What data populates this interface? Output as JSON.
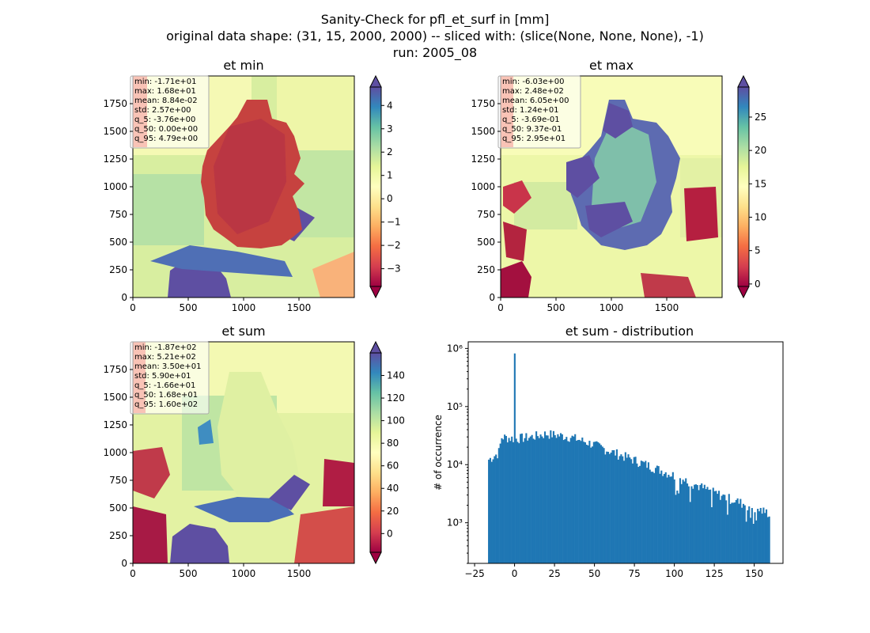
{
  "figure": {
    "title_lines": [
      "Sanity-Check for pfl_et_surf in [mm]",
      "original data shape: (31, 15, 2000, 2000) -- sliced with: (slice(None, None, None), -1)",
      "run: 2005_08"
    ]
  },
  "chart_data": [
    {
      "type": "heatmap",
      "title": "et min",
      "colormap": "Spectral",
      "xlim": [
        0,
        2000
      ],
      "ylim": [
        0,
        2000
      ],
      "x_ticks": [
        "0",
        "500",
        "1000",
        "1500"
      ],
      "y_ticks": [
        "0",
        "250",
        "500",
        "750",
        "1000",
        "1250",
        "1500",
        "1750"
      ],
      "colorbar": {
        "range": [
          -3.76,
          4.79
        ],
        "ticks": [
          "−3",
          "−2",
          "−1",
          "0",
          "1",
          "2",
          "3",
          "4"
        ],
        "ext": "both"
      },
      "stats": [
        "min: -1.71e+01",
        "max: 1.68e+01",
        "mean: 8.84e-02",
        "std: 2.57e+00",
        "q_5: -3.76e+00",
        "q_50: 0.00e+00",
        "q_95: 4.79e+00"
      ]
    },
    {
      "type": "heatmap",
      "title": "et max",
      "colormap": "Spectral",
      "xlim": [
        0,
        2000
      ],
      "ylim": [
        0,
        2000
      ],
      "x_ticks": [
        "0",
        "500",
        "1000",
        "1500"
      ],
      "y_ticks": [
        "0",
        "250",
        "500",
        "750",
        "1000",
        "1250",
        "1500",
        "1750"
      ],
      "colorbar": {
        "range": [
          -0.369,
          29.5
        ],
        "ticks": [
          "0",
          "5",
          "10",
          "15",
          "20",
          "25"
        ],
        "ext": "both"
      },
      "stats": [
        "min: -6.03e+00",
        "max: 2.48e+02",
        "mean: 6.05e+00",
        "std: 1.24e+01",
        "q_5: -3.69e-01",
        "q_50: 9.37e-01",
        "q_95: 2.95e+01"
      ]
    },
    {
      "type": "heatmap",
      "title": "et sum",
      "colormap": "Spectral",
      "xlim": [
        0,
        2000
      ],
      "ylim": [
        0,
        2000
      ],
      "x_ticks": [
        "0",
        "500",
        "1000",
        "1500"
      ],
      "y_ticks": [
        "0",
        "250",
        "500",
        "750",
        "1000",
        "1250",
        "1500",
        "1750"
      ],
      "colorbar": {
        "range": [
          -16.6,
          160
        ],
        "ticks": [
          "0",
          "20",
          "40",
          "60",
          "80",
          "100",
          "120",
          "140"
        ],
        "ext": "both"
      },
      "stats": [
        "min: -1.87e+02",
        "max: 5.21e+02",
        "mean: 3.50e+01",
        "std: 5.90e+01",
        "q_5: -1.66e+01",
        "q_50: 1.68e+01",
        "q_95: 1.60e+02"
      ]
    },
    {
      "type": "bar",
      "title": "et sum - distribution",
      "ylabel": "# of occurrence",
      "yscale": "log",
      "color": "#1f77b4",
      "x_ticks": [
        "−25",
        "0",
        "25",
        "50",
        "75",
        "100",
        "125",
        "150"
      ],
      "y_ticks": [
        "10³",
        "10⁴",
        "10⁵",
        "10⁶"
      ],
      "xlim": [
        -29,
        168
      ],
      "ylim": [
        200,
        1300000
      ],
      "bins": {
        "start": -16.6,
        "width": 0.9,
        "count": 196
      },
      "spike": {
        "x": 0,
        "value": 820000
      },
      "trend": [
        [
          -16.6,
          12000
        ],
        [
          -10,
          16000
        ],
        [
          -8,
          30000
        ],
        [
          0,
          28000
        ],
        [
          10,
          30000
        ],
        [
          20,
          34000
        ],
        [
          35,
          30000
        ],
        [
          50,
          22000
        ],
        [
          60,
          17000
        ],
        [
          75,
          12000
        ],
        [
          100,
          6500
        ],
        [
          125,
          3300
        ],
        [
          150,
          1800
        ],
        [
          158,
          1500
        ]
      ]
    }
  ]
}
